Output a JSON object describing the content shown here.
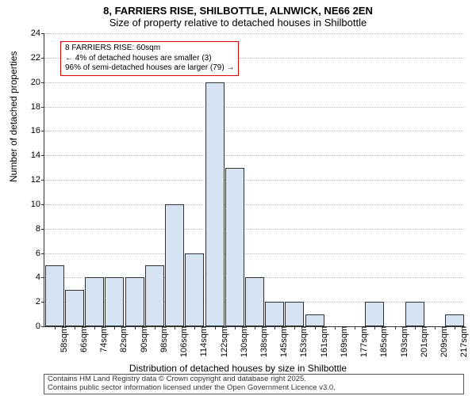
{
  "title_main": "8, FARRIERS RISE, SHILBOTTLE, ALNWICK, NE66 2EN",
  "title_sub": "Size of property relative to detached houses in Shilbottle",
  "y_axis_label": "Number of detached properties",
  "x_axis_label": "Distribution of detached houses by size in Shilbottle",
  "callout": {
    "line1": "8 FARRIERS RISE: 60sqm",
    "line2": "← 4% of detached houses are smaller (3)",
    "line3": "96% of semi-detached houses are larger (79) →"
  },
  "footer": {
    "line1": "Contains HM Land Registry data © Crown copyright and database right 2025.",
    "line2": "Contains public sector information licensed under the Open Government Licence v3.0."
  },
  "chart": {
    "type": "bar",
    "ylim": [
      0,
      24
    ],
    "ytick_step": 2,
    "background_color": "#ffffff",
    "grid_color": "#bbbbbb",
    "bar_color": "#d6e3f3",
    "bar_border_color": "#333333",
    "axis_color": "#333333",
    "title_fontsize": 13,
    "label_fontsize": 12,
    "tick_fontsize": 11,
    "x_categories": [
      "58sqm",
      "66sqm",
      "74sqm",
      "82sqm",
      "90sqm",
      "98sqm",
      "106sqm",
      "114sqm",
      "122sqm",
      "130sqm",
      "138sqm",
      "145sqm",
      "153sqm",
      "161sqm",
      "169sqm",
      "177sqm",
      "185sqm",
      "193sqm",
      "201sqm",
      "209sqm",
      "217sqm"
    ],
    "values": [
      5,
      3,
      4,
      4,
      4,
      5,
      10,
      6,
      20,
      13,
      4,
      2,
      2,
      1,
      0,
      0,
      2,
      0,
      2,
      0,
      1
    ]
  }
}
